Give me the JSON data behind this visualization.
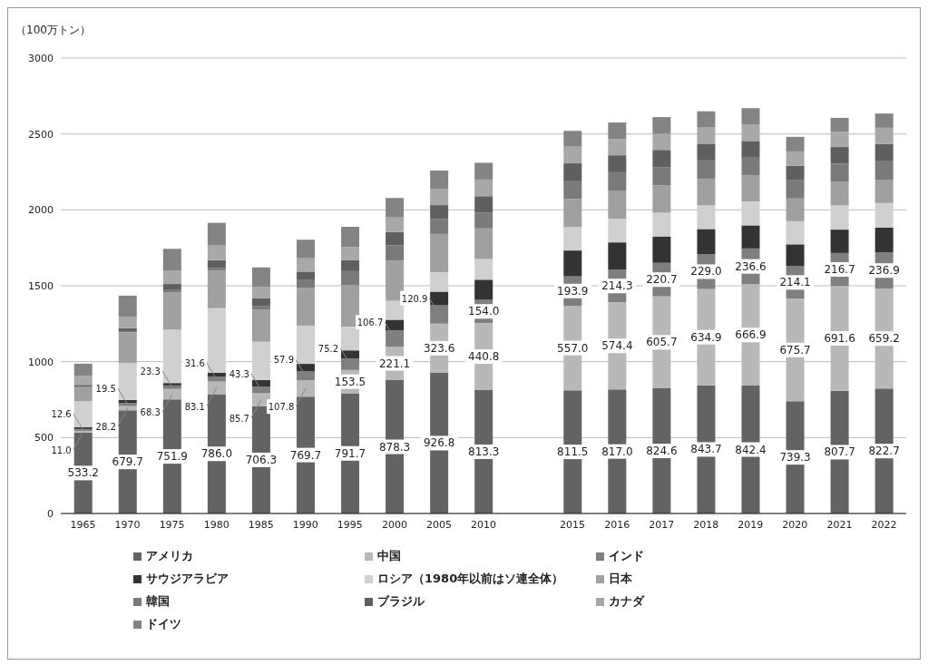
{
  "chart_data": {
    "type": "bar",
    "stacked": true,
    "ylabel": "（100万トン）",
    "categories": [
      "1965",
      "1970",
      "1975",
      "1980",
      "1985",
      "1990",
      "1995",
      "2000",
      "2005",
      "2010",
      null,
      "2015",
      "2016",
      "2017",
      "2018",
      "2019",
      "2020",
      "2021",
      "2022"
    ],
    "ylim": [
      0,
      3000
    ],
    "yticks": [
      0,
      500,
      1000,
      1500,
      2000,
      2500,
      3000
    ],
    "grid": "y",
    "legend": "bottom",
    "series": [
      {
        "name": "アメリカ",
        "color": "#636363",
        "values": [
          533.2,
          679.7,
          751.9,
          786.0,
          706.3,
          769.7,
          791.7,
          878.3,
          926.8,
          813.3,
          null,
          811.5,
          817.0,
          824.6,
          843.7,
          842.4,
          739.3,
          807.7,
          822.7
        ],
        "value_labels": [
          "533.2",
          "679.7",
          "751.9",
          "786.0",
          "706.3",
          "769.7",
          "791.7",
          "878.3",
          "926.8",
          "813.3",
          null,
          "811.5",
          "817.0",
          "824.6",
          "843.7",
          "842.4",
          "739.3",
          "807.7",
          "822.7"
        ]
      },
      {
        "name": "中国",
        "color": "#b8b8b8",
        "values": [
          11.0,
          28.2,
          68.3,
          83.1,
          85.7,
          107.8,
          153.5,
          221.1,
          323.6,
          440.8,
          null,
          557.0,
          574.4,
          605.7,
          634.9,
          666.9,
          675.7,
          691.6,
          659.2
        ],
        "value_labels": [
          "11.0",
          "28.2",
          "68.3",
          "83.1",
          "85.7",
          "107.8",
          "153.5",
          "221.1",
          "323.6",
          "440.8",
          null,
          "557.0",
          "574.4",
          "605.7",
          "634.9",
          "666.9",
          "675.7",
          "691.6",
          "659.2"
        ]
      },
      {
        "name": "インド",
        "color": "#7f7f7f",
        "values": [
          12.6,
          19.5,
          23.3,
          31.6,
          43.3,
          57.9,
          75.2,
          106.7,
          120.9,
          154.0,
          null,
          193.9,
          214.3,
          220.7,
          229.0,
          236.6,
          214.1,
          216.7,
          236.9
        ],
        "value_labels": [
          "12.6",
          "19.5",
          "23.3",
          "31.6",
          "43.3",
          "57.9",
          "75.2",
          "106.7",
          "120.9",
          "154.0",
          null,
          "193.9",
          "214.3",
          "220.7",
          "229.0",
          "236.6",
          "214.1",
          "216.7",
          "236.9"
        ]
      },
      {
        "name": "サウジアラビア",
        "color": "#333333",
        "values": [
          12,
          20,
          16,
          26,
          44,
          50,
          54,
          70,
          90,
          132,
          null,
          170,
          180,
          174,
          166,
          152,
          144,
          154,
          164
        ]
      },
      {
        "name": "ロシア（1980年以前はソ連全体）",
        "color": "#d0d0d0",
        "values": [
          170,
          244,
          352,
          426,
          252,
          252,
          156,
          126,
          128,
          136,
          null,
          154,
          156,
          156,
          156,
          158,
          152,
          160,
          162
        ]
      },
      {
        "name": "日本",
        "color": "#a0a0a0",
        "values": [
          94,
          202,
          246,
          246,
          212,
          250,
          274,
          264,
          252,
          202,
          null,
          186,
          182,
          180,
          176,
          172,
          150,
          156,
          154
        ]
      },
      {
        "name": "韓国",
        "color": "#7a7a7a",
        "values": [
          4,
          8,
          14,
          20,
          24,
          50,
          92,
          100,
          98,
          104,
          null,
          116,
          124,
          120,
          120,
          116,
          120,
          118,
          126
        ]
      },
      {
        "name": "ブラジル",
        "color": "#5f5f5f",
        "values": [
          10,
          20,
          40,
          50,
          50,
          56,
          72,
          88,
          92,
          108,
          null,
          118,
          112,
          114,
          110,
          110,
          96,
          110,
          110
        ]
      },
      {
        "name": "カナダ",
        "color": "#a8a8a8",
        "values": [
          60,
          74,
          90,
          96,
          74,
          88,
          86,
          96,
          108,
          110,
          null,
          110,
          108,
          106,
          110,
          110,
          94,
          100,
          106
        ]
      },
      {
        "name": "ドイツ",
        "color": "#848484",
        "values": [
          80,
          140,
          142,
          150,
          130,
          122,
          134,
          128,
          120,
          110,
          null,
          104,
          108,
          110,
          104,
          106,
          96,
          92,
          94
        ]
      }
    ]
  }
}
